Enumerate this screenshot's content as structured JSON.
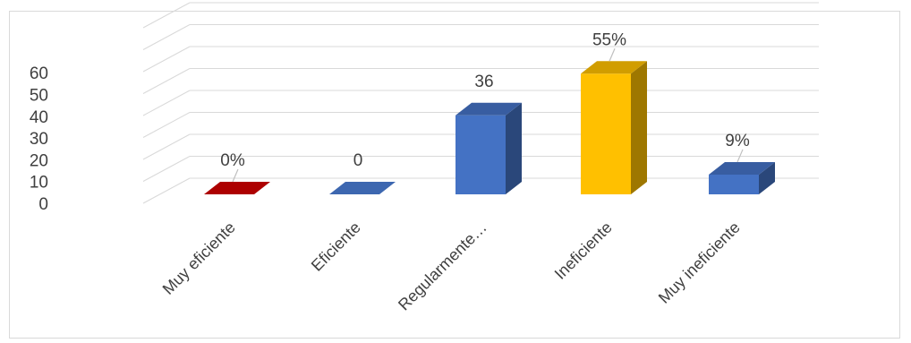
{
  "chart_data": {
    "type": "bar",
    "style": "3d-column",
    "categories": [
      "Muy eficiente",
      "Eficiente",
      "Regularmente…",
      "Ineficiente",
      "Muy ineficiente"
    ],
    "values": [
      0,
      0,
      36,
      55,
      9
    ],
    "data_labels": [
      "0%",
      "0",
      "36",
      "55%",
      "9%"
    ],
    "colors": [
      "#C00000",
      "#4472C4",
      "#4472C4",
      "#FFC000",
      "#4472C4"
    ],
    "y_ticks": [
      "0",
      "10",
      "20",
      "30",
      "40",
      "50",
      "60"
    ],
    "ylim": [
      0,
      60
    ],
    "grid": true,
    "legend": "none"
  }
}
